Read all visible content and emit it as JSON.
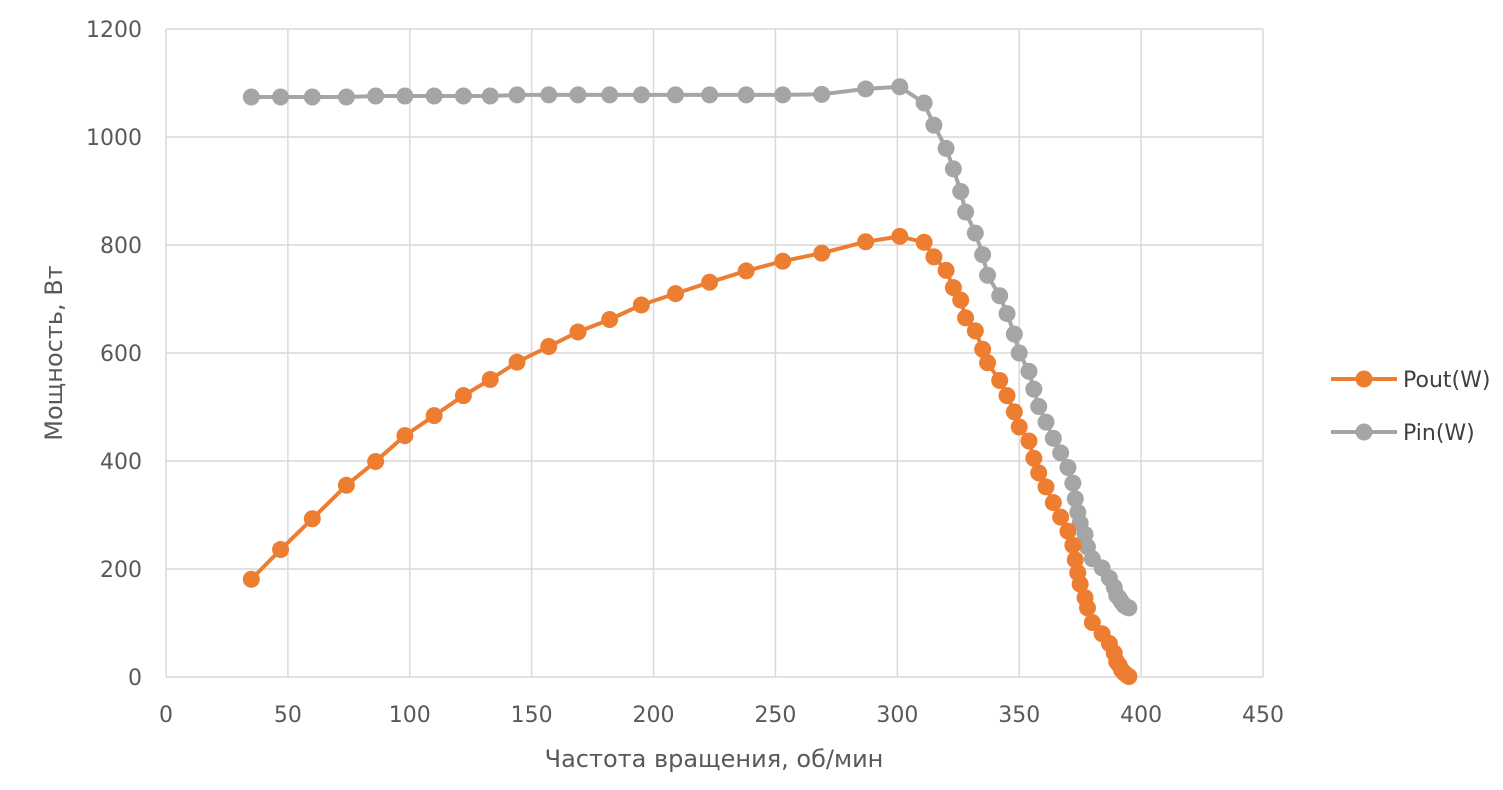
{
  "chart_data": {
    "type": "scatter",
    "title": "",
    "xlabel": "Частота вращения, об/мин",
    "ylabel": "Мощность, Вт",
    "xlim": [
      0,
      450
    ],
    "ylim": [
      0,
      1200
    ],
    "x_ticks": [
      "0",
      "50",
      "100",
      "150",
      "200",
      "250",
      "300",
      "350",
      "400",
      "450"
    ],
    "y_ticks": [
      "0",
      "200",
      "400",
      "600",
      "800",
      "1000",
      "1200"
    ],
    "grid": true,
    "legend_position": "right",
    "series": [
      {
        "name": "Pout(W)",
        "color": "#ED7D31",
        "x": [
          35,
          47,
          60,
          74,
          86,
          98,
          110,
          122,
          133,
          144,
          157,
          169,
          182,
          195,
          209,
          223,
          238,
          253,
          269,
          287,
          301,
          311,
          315,
          320,
          323,
          326,
          328,
          332,
          335,
          337,
          342,
          345,
          348,
          350,
          354,
          356,
          358,
          361,
          364,
          367,
          370,
          372,
          373,
          374,
          375,
          377,
          378,
          380,
          384,
          387,
          389,
          390,
          391,
          392,
          393,
          394,
          395
        ],
        "y": [
          181,
          236,
          293,
          355,
          399,
          447,
          484,
          521,
          551,
          583,
          612,
          639,
          662,
          689,
          710,
          731,
          752,
          770,
          785,
          806,
          816,
          805,
          778,
          753,
          721,
          698,
          665,
          641,
          607,
          582,
          549,
          521,
          491,
          463,
          437,
          405,
          378,
          352,
          323,
          296,
          270,
          244,
          217,
          193,
          172,
          147,
          128,
          101,
          80,
          62,
          44,
          28,
          22,
          13,
          8,
          4,
          1
        ]
      },
      {
        "name": "Pin(W)",
        "color": "#A5A5A5",
        "x": [
          35,
          47,
          60,
          74,
          86,
          98,
          110,
          122,
          133,
          144,
          157,
          169,
          182,
          195,
          209,
          223,
          238,
          253,
          269,
          287,
          301,
          311,
          315,
          320,
          323,
          326,
          328,
          332,
          335,
          337,
          342,
          345,
          348,
          350,
          354,
          356,
          358,
          361,
          364,
          367,
          370,
          372,
          373,
          374,
          375,
          377,
          378,
          380,
          384,
          387,
          389,
          390,
          391,
          392,
          393,
          394,
          395
        ],
        "y": [
          1074,
          1074,
          1074,
          1074,
          1076,
          1076,
          1076,
          1076,
          1076,
          1078,
          1078,
          1078,
          1078,
          1078,
          1078,
          1078,
          1078,
          1078,
          1079,
          1089,
          1093,
          1063,
          1022,
          979,
          941,
          899,
          861,
          822,
          782,
          744,
          706,
          673,
          635,
          600,
          566,
          533,
          501,
          472,
          442,
          415,
          388,
          359,
          330,
          305,
          285,
          264,
          241,
          219,
          202,
          183,
          166,
          151,
          146,
          139,
          133,
          130,
          128
        ]
      }
    ]
  }
}
